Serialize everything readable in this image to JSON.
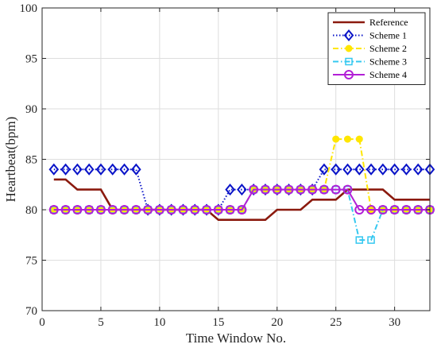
{
  "chart_data": {
    "type": "line",
    "title": "",
    "xlabel": "Time Window No.",
    "ylabel": "Heartbeat(bpm)",
    "xlim": [
      0,
      33
    ],
    "ylim": [
      70,
      100
    ],
    "xticks": [
      0,
      5,
      10,
      15,
      20,
      25,
      30
    ],
    "yticks": [
      70,
      75,
      80,
      85,
      90,
      95,
      100
    ],
    "grid": true,
    "legend_position": "top-right",
    "x": [
      1,
      2,
      3,
      4,
      5,
      6,
      7,
      8,
      9,
      10,
      11,
      12,
      13,
      14,
      15,
      16,
      17,
      18,
      19,
      20,
      21,
      22,
      23,
      24,
      25,
      26,
      27,
      28,
      29,
      30,
      31,
      32,
      33
    ],
    "series": [
      {
        "name": "Reference",
        "color": "#8b1a0e",
        "line_style": "solid",
        "marker": "none",
        "values": [
          83,
          83,
          82,
          82,
          82,
          80,
          80,
          80,
          80,
          80,
          80,
          80,
          80,
          80,
          79,
          79,
          79,
          79,
          79,
          80,
          80,
          80,
          81,
          81,
          81,
          82,
          82,
          82,
          82,
          81,
          81,
          81,
          81
        ]
      },
      {
        "name": "Scheme 1",
        "color": "#0a14c8",
        "line_style": "dotted",
        "marker": "diamond",
        "values": [
          84,
          84,
          84,
          84,
          84,
          84,
          84,
          84,
          80,
          80,
          80,
          80,
          80,
          80,
          80,
          82,
          82,
          82,
          82,
          82,
          82,
          82,
          82,
          84,
          84,
          84,
          84,
          84,
          84,
          84,
          84,
          84,
          84
        ]
      },
      {
        "name": "Scheme 2",
        "color": "#ffe600",
        "line_style": "dashdot",
        "marker": "circle-filled",
        "values": [
          80,
          80,
          80,
          80,
          80,
          80,
          80,
          80,
          80,
          80,
          80,
          80,
          80,
          80,
          80,
          80,
          80,
          82,
          82,
          82,
          82,
          82,
          82,
          82,
          87,
          87,
          87,
          80,
          80,
          80,
          80,
          80,
          80
        ]
      },
      {
        "name": "Scheme 3",
        "color": "#35c8f0",
        "line_style": "dashdot",
        "marker": "square",
        "values": [
          80,
          80,
          80,
          80,
          80,
          80,
          80,
          80,
          80,
          80,
          80,
          80,
          80,
          80,
          80,
          80,
          80,
          82,
          82,
          82,
          82,
          82,
          82,
          82,
          82,
          82,
          77,
          77,
          80,
          80,
          80,
          80,
          80
        ]
      },
      {
        "name": "Scheme 4",
        "color": "#b21fd6",
        "line_style": "solid",
        "marker": "circle",
        "values": [
          80,
          80,
          80,
          80,
          80,
          80,
          80,
          80,
          80,
          80,
          80,
          80,
          80,
          80,
          80,
          80,
          80,
          82,
          82,
          82,
          82,
          82,
          82,
          82,
          82,
          82,
          80,
          80,
          80,
          80,
          80,
          80,
          80
        ]
      }
    ]
  }
}
